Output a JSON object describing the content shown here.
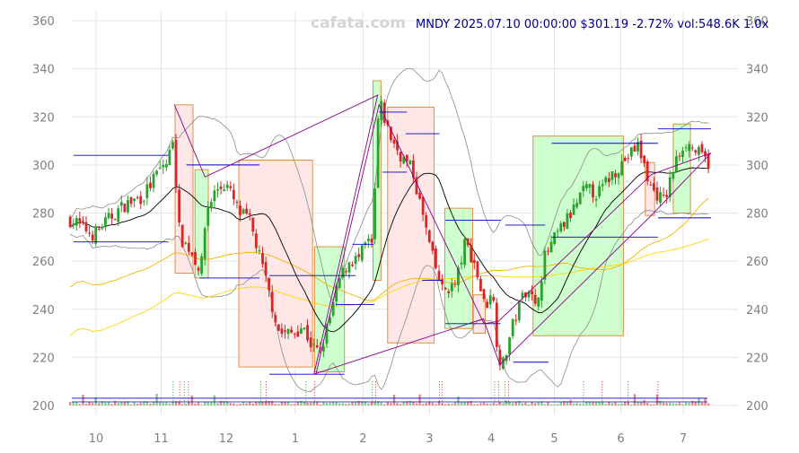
{
  "watermark": "cafata.com",
  "header": "MNDY 2025.07.10 00:00:00 $301.19 -2.72% vol:548.6K 1.0x",
  "chart_data": {
    "type": "candlestick",
    "title": "MNDY 2025.07.10 00:00:00 $301.19 -2.72% vol:548.6K 1.0x",
    "ylim": [
      195,
      363
    ],
    "y_ticks": [
      200,
      220,
      240,
      260,
      280,
      300,
      320,
      340,
      360
    ],
    "x_ticks": [
      {
        "label": "10",
        "t": 0.04
      },
      {
        "label": "11",
        "t": 1.02
      },
      {
        "label": "12",
        "t": 2.0
      },
      {
        "label": "1",
        "t": 3.04
      },
      {
        "label": "2",
        "t": 4.06
      },
      {
        "label": "3",
        "t": 5.06
      },
      {
        "label": "4",
        "t": 5.99
      },
      {
        "label": "5",
        "t": 6.94
      },
      {
        "label": "6",
        "t": 7.94
      },
      {
        "label": "7",
        "t": 8.88
      }
    ],
    "grid": true,
    "colors": {
      "up": "#2ca02c",
      "down": "#d62728",
      "grid": "#e5e5e5",
      "ma_short": "#000000",
      "ma_mid": "#f4b400",
      "ma_long": "#ffd700",
      "band": "#8c8c8c",
      "zigzag": "#8b008b",
      "level": "#0000cd",
      "box_up_fill": "#ccffcc",
      "box_down_fill": "#ffe6e6",
      "box_edge": "#e08a3c"
    },
    "close_anchors": [
      [
        -0.5,
        279
      ],
      [
        -0.25,
        276
      ],
      [
        0.0,
        271
      ],
      [
        0.25,
        278
      ],
      [
        0.45,
        283
      ],
      [
        0.75,
        287
      ],
      [
        0.95,
        296
      ],
      [
        1.05,
        300
      ],
      [
        1.12,
        301
      ],
      [
        1.2,
        312
      ],
      [
        1.3,
        270
      ],
      [
        1.45,
        265
      ],
      [
        1.62,
        256
      ],
      [
        1.7,
        281
      ],
      [
        1.85,
        290
      ],
      [
        2.0,
        292
      ],
      [
        2.2,
        280
      ],
      [
        2.35,
        277
      ],
      [
        2.5,
        262
      ],
      [
        2.65,
        246
      ],
      [
        2.8,
        230
      ],
      [
        3.0,
        230
      ],
      [
        3.15,
        233
      ],
      [
        3.3,
        224
      ],
      [
        3.42,
        222
      ],
      [
        3.55,
        235
      ],
      [
        3.7,
        252
      ],
      [
        3.85,
        260
      ],
      [
        4.0,
        261
      ],
      [
        4.12,
        268
      ],
      [
        4.2,
        266
      ],
      [
        4.3,
        327
      ],
      [
        4.45,
        313
      ],
      [
        4.6,
        305
      ],
      [
        4.8,
        298
      ],
      [
        4.95,
        280
      ],
      [
        5.1,
        262
      ],
      [
        5.25,
        248
      ],
      [
        5.45,
        250
      ],
      [
        5.6,
        268
      ],
      [
        5.75,
        258
      ],
      [
        5.9,
        240
      ],
      [
        6.0,
        250
      ],
      [
        6.08,
        225
      ],
      [
        6.15,
        215
      ],
      [
        6.3,
        232
      ],
      [
        6.45,
        245
      ],
      [
        6.55,
        250
      ],
      [
        6.65,
        240
      ],
      [
        6.8,
        262
      ],
      [
        7.0,
        272
      ],
      [
        7.2,
        280
      ],
      [
        7.4,
        290
      ],
      [
        7.6,
        288
      ],
      [
        7.8,
        296
      ],
      [
        8.0,
        302
      ],
      [
        8.2,
        308
      ],
      [
        8.4,
        290
      ],
      [
        8.6,
        285
      ],
      [
        8.75,
        300
      ],
      [
        8.9,
        310
      ],
      [
        9.1,
        305
      ],
      [
        9.25,
        301
      ]
    ],
    "t_range": [
      -0.35,
      9.26
    ],
    "candle_count": 200,
    "boxes": [
      {
        "dir": "down",
        "t0": 1.23,
        "t1": 1.5,
        "top": 325,
        "bottom": 255
      },
      {
        "dir": "up",
        "t0": 1.53,
        "t1": 1.73,
        "top": 298,
        "bottom": 253
      },
      {
        "dir": "down",
        "t0": 2.19,
        "t1": 3.3,
        "top": 302,
        "bottom": 216
      },
      {
        "dir": "up",
        "t0": 3.33,
        "t1": 3.78,
        "top": 266,
        "bottom": 214
      },
      {
        "dir": "up",
        "t0": 4.21,
        "t1": 4.33,
        "top": 335,
        "bottom": 252
      },
      {
        "dir": "down",
        "t0": 4.43,
        "t1": 5.13,
        "top": 324,
        "bottom": 226
      },
      {
        "dir": "up",
        "t0": 5.29,
        "t1": 5.71,
        "top": 282,
        "bottom": 232
      },
      {
        "dir": "down",
        "t0": 5.72,
        "t1": 5.9,
        "top": 246,
        "bottom": 230
      },
      {
        "dir": "up",
        "t0": 6.62,
        "t1": 7.98,
        "top": 312,
        "bottom": 229
      },
      {
        "dir": "down",
        "t0": 8.31,
        "t1": 8.45,
        "top": 301,
        "bottom": 279
      },
      {
        "dir": "up",
        "t0": 8.73,
        "t1": 8.99,
        "top": 317,
        "bottom": 280
      }
    ],
    "zigzag": [
      [
        1.22,
        325
      ],
      [
        1.68,
        295
      ],
      [
        4.28,
        329
      ],
      [
        3.32,
        213
      ],
      [
        5.87,
        236
      ],
      [
        6.12,
        217
      ],
      [
        8.4,
        279
      ],
      [
        9.3,
        305
      ],
      [
        8.4,
        296
      ],
      [
        6.1,
        235
      ],
      [
        5.88,
        234
      ],
      [
        4.3,
        325
      ],
      [
        3.35,
        213
      ]
    ],
    "levels": [
      {
        "t0": -0.3,
        "t1": 1.13,
        "y": 304
      },
      {
        "t0": -0.3,
        "t1": 1.13,
        "y": 268
      },
      {
        "t0": 1.4,
        "t1": 2.5,
        "y": 300
      },
      {
        "t0": 1.6,
        "t1": 2.5,
        "y": 253
      },
      {
        "t0": 2.65,
        "t1": 3.95,
        "y": 254
      },
      {
        "t0": 2.65,
        "t1": 3.78,
        "y": 213
      },
      {
        "t0": 3.65,
        "t1": 4.23,
        "y": 242
      },
      {
        "t0": 3.9,
        "t1": 4.22,
        "y": 267
      },
      {
        "t0": 4.3,
        "t1": 4.72,
        "y": 322
      },
      {
        "t0": 4.35,
        "t1": 4.72,
        "y": 297
      },
      {
        "t0": 4.7,
        "t1": 5.21,
        "y": 313
      },
      {
        "t0": 4.95,
        "t1": 5.25,
        "y": 252
      },
      {
        "t0": 5.3,
        "t1": 6.13,
        "y": 277
      },
      {
        "t0": 5.3,
        "t1": 6.13,
        "y": 234
      },
      {
        "t0": 6.2,
        "t1": 6.8,
        "y": 275
      },
      {
        "t0": 6.32,
        "t1": 6.85,
        "y": 218
      },
      {
        "t0": 6.9,
        "t1": 8.5,
        "y": 309
      },
      {
        "t0": 6.9,
        "t1": 8.5,
        "y": 270
      },
      {
        "t0": 8.5,
        "t1": 9.3,
        "y": 315
      },
      {
        "t0": 8.5,
        "t1": 9.3,
        "y": 278
      }
    ],
    "markers": [
      1.2,
      1.3,
      1.37,
      1.43,
      2.52,
      2.6,
      3.2,
      3.33,
      4.2,
      4.25,
      5.21,
      5.25,
      6.04,
      6.1,
      6.2,
      6.25,
      7.38,
      7.66,
      8.05,
      8.5
    ],
    "y_axis_right": true
  }
}
